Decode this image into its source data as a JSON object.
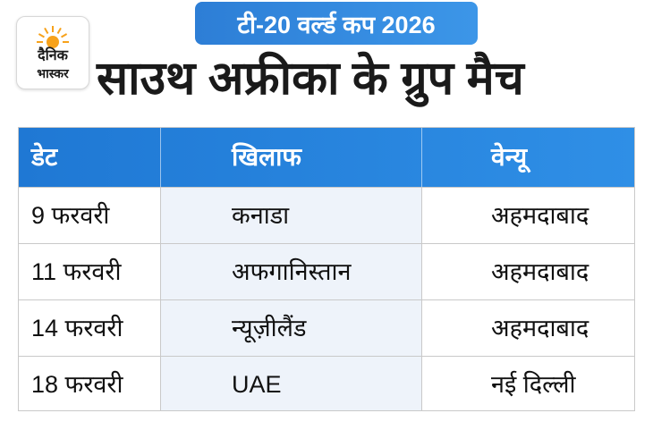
{
  "banner": {
    "text": "टी-20 वर्ल्ड कप 2026"
  },
  "logo": {
    "line1": "दैनिक",
    "line2": "भास्कर",
    "sun_color": "#f7a21b"
  },
  "headline": "साउथ अफ्रीका के ग्रुप मैच",
  "table": {
    "headers": [
      "डेट",
      "खिलाफ",
      "वेन्यू"
    ],
    "rows": [
      {
        "date": "9 फरवरी",
        "opponent": "कनाडा",
        "venue": "अहमदाबाद"
      },
      {
        "date": "11 फरवरी",
        "opponent": "अफगानिस्तान",
        "venue": "अहमदाबाद"
      },
      {
        "date": "14 फरवरी",
        "opponent": "न्यूज़ीलैंड",
        "venue": "अहमदाबाद"
      },
      {
        "date": "18 फरवरी",
        "opponent": "UAE",
        "venue": "नई दिल्ली"
      }
    ]
  },
  "colors": {
    "header_blue": "#1f78d4",
    "banner_blue": "#2d7ed6",
    "band": "#eef3fa"
  }
}
